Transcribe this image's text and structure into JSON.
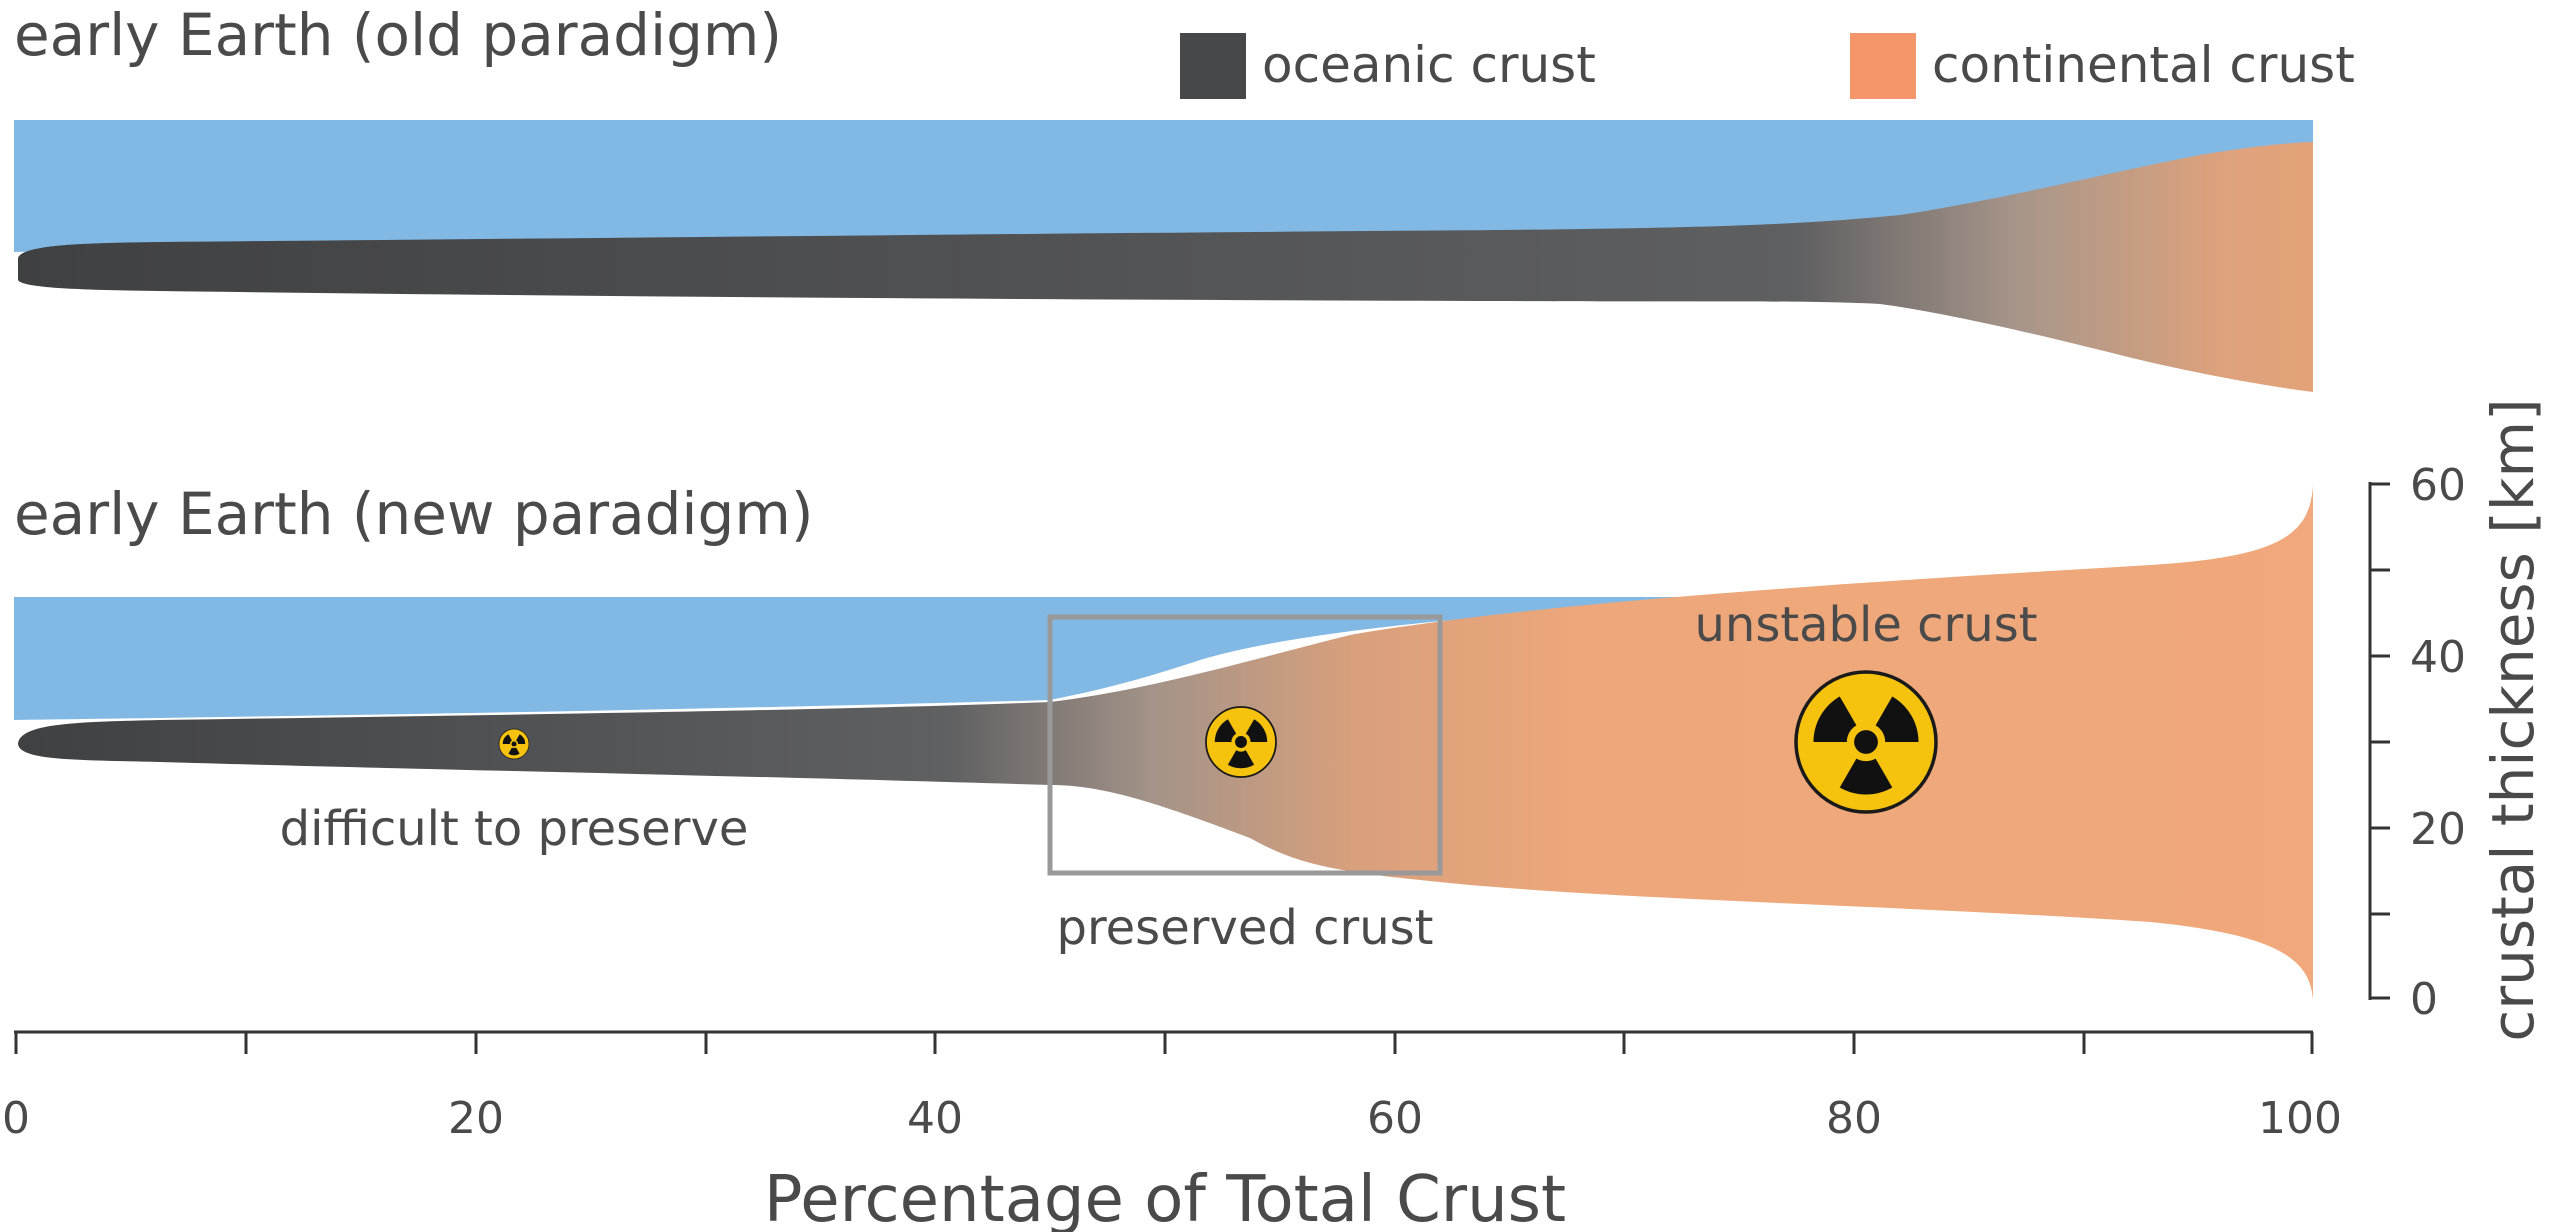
{
  "panels": {
    "old": {
      "title": "early Earth (old paradigm)"
    },
    "new": {
      "title": "early Earth (new paradigm)"
    }
  },
  "legend": {
    "oceanic": {
      "label": "oceanic crust",
      "color": "#47484a"
    },
    "continental": {
      "label": "continental crust",
      "color": "#f4956a"
    }
  },
  "annotations": {
    "difficult": "difficult to preserve",
    "preserved": "preserved crust",
    "unstable": "unstable crust"
  },
  "colors": {
    "ocean": "#82b8e4",
    "oceanic_crust": "#47484a",
    "continental_crust": "#f2a070",
    "box": "#999999",
    "hazard_fill": "#f5c20e",
    "hazard_symbol": "#111111"
  },
  "icons": {
    "hazard": "radiation-hazard-icon"
  },
  "chart_data": {
    "type": "area",
    "x_axis": {
      "label": "Percentage of Total Crust",
      "range": [
        0,
        100
      ],
      "major_ticks": [
        0,
        20,
        40,
        60,
        80,
        100
      ],
      "minor_ticks": [
        10,
        30,
        50,
        70,
        90
      ]
    },
    "y_axis": {
      "label": "crustal thickness [km]",
      "range": [
        0,
        60
      ],
      "major_ticks": [
        0,
        20,
        40,
        60
      ],
      "minor_ticks": [
        10,
        30,
        50
      ],
      "applies_to": "early Earth (new paradigm)"
    },
    "preserved_window_percent": [
      45,
      62
    ],
    "hazard_markers_percent": [
      22,
      53.5,
      81
    ]
  }
}
